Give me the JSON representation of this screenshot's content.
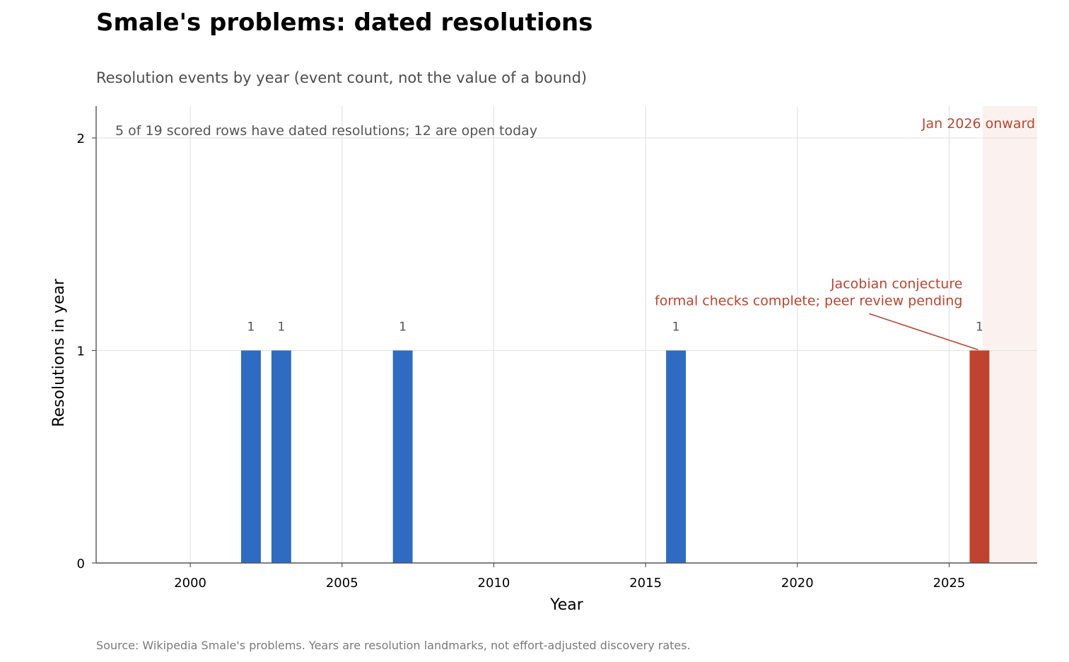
{
  "chart_data": {
    "type": "bar",
    "title": "Smale's problems: dated resolutions",
    "subtitle": "Resolution events by year (event count, not the value of a bound)",
    "xlabel": "Year",
    "ylabel": "Resolutions in year",
    "x_ticks": [
      2000,
      2005,
      2010,
      2015,
      2020,
      2025
    ],
    "y_ticks": [
      0,
      1,
      2
    ],
    "xlim": [
      1996.9,
      2027.9
    ],
    "ylim": [
      0,
      2.15
    ],
    "grid": true,
    "series": [
      {
        "status": "resolved",
        "color": "#2f6bc1",
        "points": [
          {
            "x": 2002,
            "y": 1
          },
          {
            "x": 2003,
            "y": 1
          },
          {
            "x": 2007,
            "y": 1
          },
          {
            "x": 2016,
            "y": 1
          }
        ]
      },
      {
        "status": "pending",
        "color": "#c0432f",
        "points": [
          {
            "x": 2026,
            "y": 1
          }
        ]
      }
    ],
    "data_labels": [
      "1",
      "1",
      "1",
      "1",
      "1"
    ],
    "shaded_region": {
      "x_start": 2026.1,
      "label": "Jan 2026 onward",
      "color": "#c0432f"
    },
    "annotations": {
      "count_note": "5 of 19 scored rows have dated resolutions; 12 are open today",
      "callout": {
        "line1": "Jacobian conjecture",
        "line2": "formal checks complete; peer review pending",
        "target": {
          "x": 2026,
          "y": 1
        }
      }
    },
    "source": "Source: Wikipedia Smale's problems. Years are resolution landmarks, not effort-adjusted discovery rates."
  }
}
